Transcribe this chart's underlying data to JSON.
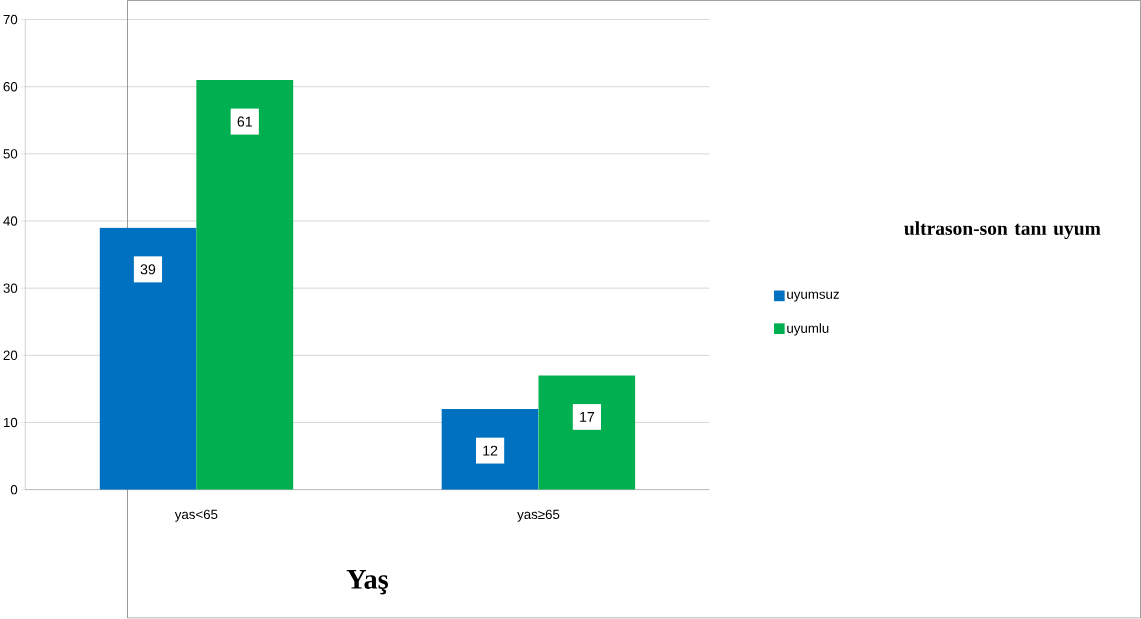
{
  "chart_data": {
    "type": "bar",
    "xlabel": "Yaş",
    "legend_title": "ultrason-son tanı uyum",
    "categories": [
      "yas<65",
      "yas≥65"
    ],
    "series": [
      {
        "name": "uyumsuz",
        "color": "#0070c0",
        "values": [
          39,
          12
        ]
      },
      {
        "name": "uyumlu",
        "color": "#00b050",
        "values": [
          61,
          17
        ]
      }
    ],
    "ylim": [
      0,
      70
    ],
    "yticks": [
      0,
      10,
      20,
      30,
      40,
      50,
      60,
      70
    ],
    "grid": "y",
    "legend": "right",
    "data_labels": true
  }
}
